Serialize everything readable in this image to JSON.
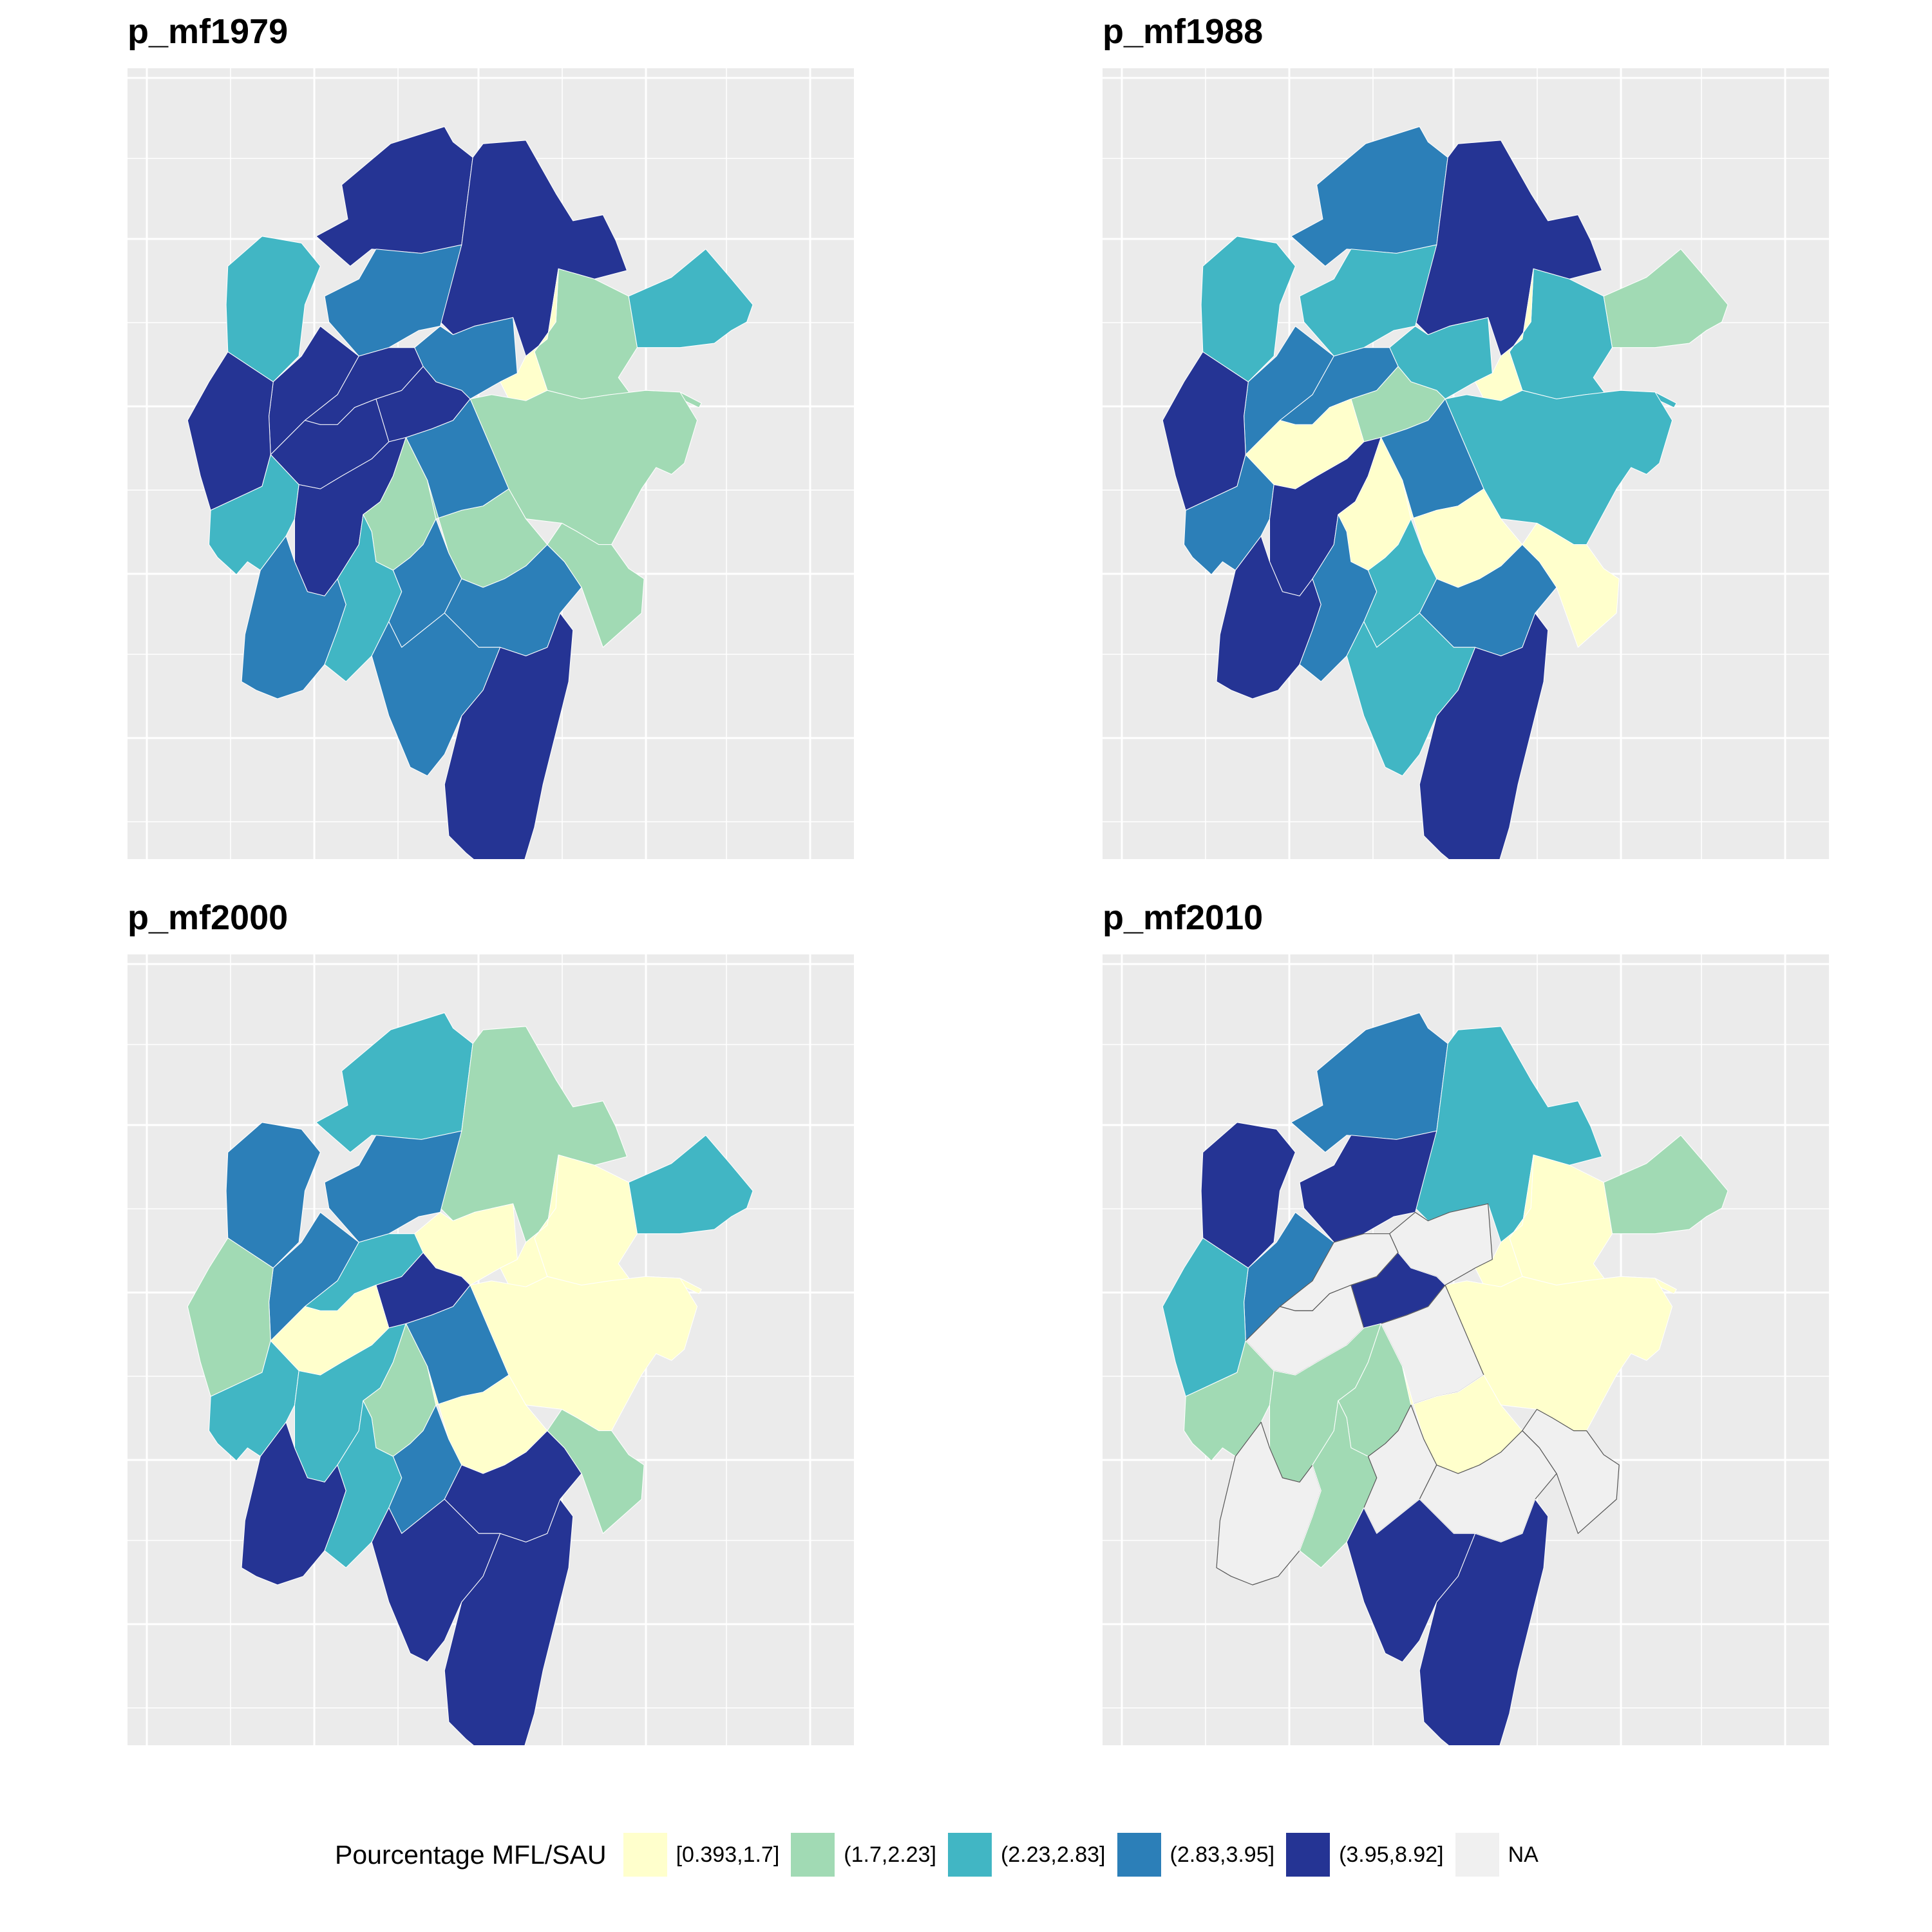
{
  "panels": [
    {
      "title": "p_mf1979",
      "classes": [
        2,
        4,
        4,
        3,
        4,
        4,
        1,
        0,
        1,
        2,
        3,
        4,
        4,
        4,
        3,
        2,
        4,
        1,
        1,
        3,
        2,
        3,
        3,
        3,
        4,
        1
      ]
    },
    {
      "title": "p_mf1988",
      "classes": [
        2,
        3,
        4,
        2,
        3,
        4,
        2,
        0,
        2,
        1,
        2,
        1,
        3,
        0,
        3,
        3,
        4,
        0,
        0,
        4,
        3,
        2,
        3,
        2,
        4,
        0
      ]
    },
    {
      "title": "p_mf2000",
      "classes": [
        3,
        2,
        1,
        3,
        3,
        1,
        0,
        0,
        0,
        2,
        0,
        4,
        2,
        0,
        3,
        2,
        2,
        1,
        0,
        4,
        2,
        3,
        4,
        4,
        4,
        1
      ]
    },
    {
      "title": "p_mf2010",
      "classes": [
        4,
        3,
        2,
        4,
        3,
        2,
        0,
        0,
        0,
        1,
        5,
        4,
        5,
        5,
        5,
        1,
        1,
        1,
        0,
        5,
        1,
        5,
        5,
        4,
        4,
        5
      ]
    }
  ],
  "legend": {
    "title": "Pourcentage MFL/SAU",
    "items": [
      {
        "label": "[0.393,1.7]",
        "color": "#ffffcc"
      },
      {
        "label": "(1.7,2.23]",
        "color": "#a1dab4"
      },
      {
        "label": "(2.23,2.83]",
        "color": "#41b6c4"
      },
      {
        "label": "(2.83,3.95]",
        "color": "#2c7fb8"
      },
      {
        "label": "(3.95,8.92]",
        "color": "#253494"
      },
      {
        "label": "NA",
        "color": "#f0f0f0"
      }
    ]
  }
}
